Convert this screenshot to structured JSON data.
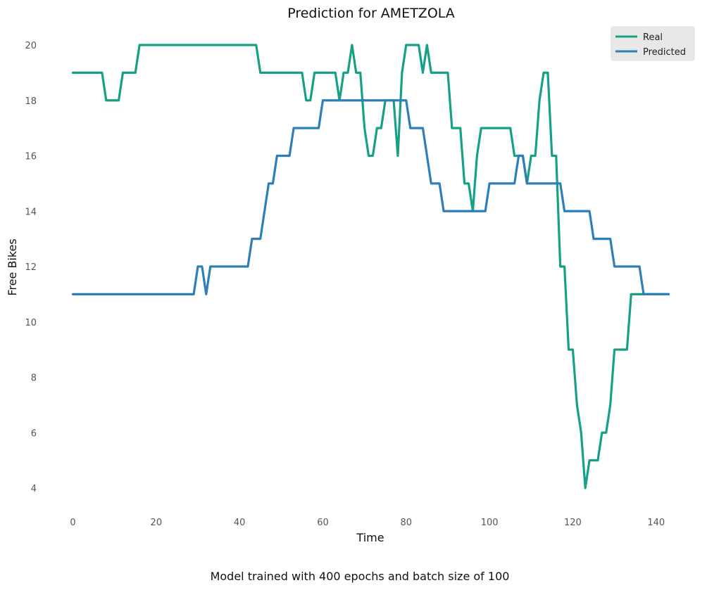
{
  "chart_data": {
    "type": "line",
    "title": "Prediction for AMETZOLA",
    "xlabel": "Time",
    "ylabel": "Free Bikes",
    "footer": "Model trained with 400 epochs and batch size of 100",
    "xlim": [
      0,
      143
    ],
    "ylim": [
      4,
      20
    ],
    "xticks": [
      0,
      20,
      40,
      60,
      80,
      100,
      120,
      140
    ],
    "yticks": [
      4,
      6,
      8,
      10,
      12,
      14,
      16,
      18,
      20
    ],
    "grid": false,
    "legend_position": "top-right",
    "series": [
      {
        "name": "Real",
        "color": "#16a085",
        "points": [
          [
            0,
            19
          ],
          [
            7,
            19
          ],
          [
            8,
            18
          ],
          [
            11,
            18
          ],
          [
            12,
            19
          ],
          [
            15,
            19
          ],
          [
            16,
            20
          ],
          [
            44,
            20
          ],
          [
            45,
            19
          ],
          [
            55,
            19
          ],
          [
            56,
            18
          ],
          [
            57,
            18
          ],
          [
            58,
            19
          ],
          [
            63,
            19
          ],
          [
            64,
            18
          ],
          [
            65,
            19
          ],
          [
            66,
            19
          ],
          [
            67,
            20
          ],
          [
            68,
            19
          ],
          [
            69,
            19
          ],
          [
            70,
            17
          ],
          [
            71,
            16
          ],
          [
            72,
            16
          ],
          [
            73,
            17
          ],
          [
            74,
            17
          ],
          [
            75,
            18
          ],
          [
            77,
            18
          ],
          [
            78,
            16
          ],
          [
            79,
            19
          ],
          [
            80,
            20
          ],
          [
            83,
            20
          ],
          [
            84,
            19
          ],
          [
            85,
            20
          ],
          [
            86,
            19
          ],
          [
            90,
            19
          ],
          [
            91,
            17
          ],
          [
            93,
            17
          ],
          [
            94,
            15
          ],
          [
            95,
            15
          ],
          [
            96,
            14
          ],
          [
            97,
            16
          ],
          [
            98,
            17
          ],
          [
            105,
            17
          ],
          [
            106,
            16
          ],
          [
            108,
            16
          ],
          [
            109,
            15
          ],
          [
            110,
            16
          ],
          [
            111,
            16
          ],
          [
            112,
            18
          ],
          [
            113,
            19
          ],
          [
            114,
            19
          ],
          [
            115,
            16
          ],
          [
            116,
            16
          ],
          [
            117,
            12
          ],
          [
            118,
            12
          ],
          [
            119,
            9
          ],
          [
            120,
            9
          ],
          [
            121,
            7
          ],
          [
            122,
            6
          ],
          [
            123,
            4
          ],
          [
            124,
            5
          ],
          [
            126,
            5
          ],
          [
            127,
            6
          ],
          [
            128,
            6
          ],
          [
            129,
            7
          ],
          [
            130,
            9
          ],
          [
            133,
            9
          ],
          [
            134,
            11
          ],
          [
            143,
            11
          ]
        ]
      },
      {
        "name": "Predicted",
        "color": "#2c7fb8",
        "points": [
          [
            0,
            11
          ],
          [
            29,
            11
          ],
          [
            30,
            12
          ],
          [
            31,
            12
          ],
          [
            32,
            11
          ],
          [
            33,
            12
          ],
          [
            42,
            12
          ],
          [
            43,
            13
          ],
          [
            45,
            13
          ],
          [
            46,
            14
          ],
          [
            47,
            15
          ],
          [
            48,
            15
          ],
          [
            49,
            16
          ],
          [
            52,
            16
          ],
          [
            53,
            17
          ],
          [
            59,
            17
          ],
          [
            60,
            18
          ],
          [
            80,
            18
          ],
          [
            81,
            17
          ],
          [
            84,
            17
          ],
          [
            85,
            16
          ],
          [
            86,
            15
          ],
          [
            88,
            15
          ],
          [
            89,
            14
          ],
          [
            99,
            14
          ],
          [
            100,
            15
          ],
          [
            106,
            15
          ],
          [
            107,
            16
          ],
          [
            108,
            16
          ],
          [
            109,
            15
          ],
          [
            117,
            15
          ],
          [
            118,
            14
          ],
          [
            124,
            14
          ],
          [
            125,
            13
          ],
          [
            129,
            13
          ],
          [
            130,
            12
          ],
          [
            136,
            12
          ],
          [
            137,
            11
          ],
          [
            143,
            11
          ]
        ]
      }
    ]
  }
}
